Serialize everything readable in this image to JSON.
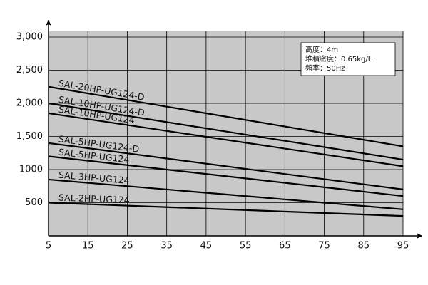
{
  "chart_data": {
    "type": "line",
    "x": [
      5,
      95
    ],
    "xlim": [
      5,
      95
    ],
    "xticks": [
      5,
      15,
      25,
      35,
      45,
      55,
      65,
      75,
      85,
      95
    ],
    "ylim": [
      0,
      3000
    ],
    "yticks": [
      500,
      1000,
      {
        "value": 1500,
        "label": "1,500"
      },
      {
        "value": 2000,
        "label": "2,000"
      },
      {
        "value": 2500,
        "label": "2,500"
      },
      {
        "value": 3000,
        "label": "3,000"
      }
    ],
    "grid": true,
    "series": [
      {
        "name": "SAL-20HP-UG124-D",
        "color": "#000000",
        "values": [
          2250,
          1350
        ]
      },
      {
        "name": "SAL-10HP-UG124-D",
        "color": "#000000",
        "values": [
          2000,
          1150
        ]
      },
      {
        "name": "SAL-10HP-UG124",
        "color": "#000000",
        "values": [
          1850,
          1050
        ]
      },
      {
        "name": "SAL-5HP-UG124-D",
        "color": "#000000",
        "values": [
          1400,
          700
        ]
      },
      {
        "name": "SAL-5HP-UG124",
        "color": "#000000",
        "values": [
          1200,
          600
        ]
      },
      {
        "name": "SAL-3HP-UG124",
        "color": "#000000",
        "values": [
          850,
          400
        ]
      },
      {
        "name": "SAL-2HP-UG124",
        "color": "#000000",
        "values": [
          500,
          300
        ]
      }
    ],
    "annotation": [
      "高度：4m",
      "堆積密度：0.65kg/L",
      "頻率：50Hz"
    ]
  }
}
